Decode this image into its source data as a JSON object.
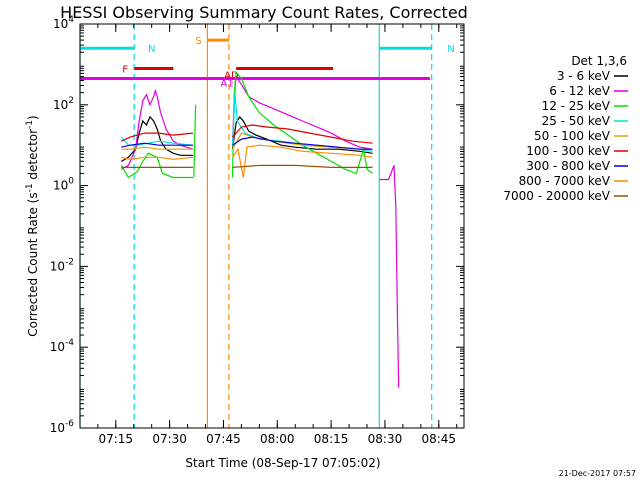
{
  "chart_data": {
    "type": "line",
    "title": "HESSI Observing Summary Count Rates, Corrected",
    "xlabel": "Start Time (08-Sep-17 07:05:02)",
    "ylabel": "Corrected Count Rate (s⁻¹ detector⁻¹)",
    "ylabel_parts": {
      "main": "Corrected Count Rate (s",
      "exp1": "-1",
      "mid": " detector",
      "exp2": "-1",
      "end": ")"
    },
    "x_unit": "minutes after 07:05:02",
    "xlim": [
      0,
      107
    ],
    "ylim_log10": [
      -6,
      4
    ],
    "x_ticks": [
      {
        "t": 9.97,
        "label": "07:15"
      },
      {
        "t": 24.97,
        "label": "07:30"
      },
      {
        "t": 39.97,
        "label": "07:45"
      },
      {
        "t": 54.97,
        "label": "08:00"
      },
      {
        "t": 69.97,
        "label": "08:15"
      },
      {
        "t": 84.97,
        "label": "08:30"
      },
      {
        "t": 99.97,
        "label": "08:45"
      }
    ],
    "y_ticks": [
      {
        "exp": 4,
        "mant": "10",
        "sup": "4"
      },
      {
        "exp": 2,
        "mant": "10",
        "sup": "2"
      },
      {
        "exp": 0,
        "mant": "10",
        "sup": "0"
      },
      {
        "exp": -2,
        "mant": "10",
        "sup": "-2"
      },
      {
        "exp": -4,
        "mant": "10",
        "sup": "-4"
      },
      {
        "exp": -6,
        "mant": "10",
        "sup": "-6"
      }
    ],
    "legend": {
      "title": "Det 1,3,6",
      "placement": "right",
      "entries": [
        {
          "label": "3 - 6 keV",
          "color": "#000000"
        },
        {
          "label": "6 - 12 keV",
          "color": "#e000e0"
        },
        {
          "label": "12 - 25 keV",
          "color": "#00e000"
        },
        {
          "label": "25 - 50 keV",
          "color": "#00e0e0"
        },
        {
          "label": "50 - 100 keV",
          "color": "#e0a000"
        },
        {
          "label": "100 - 300 keV",
          "color": "#e00000"
        },
        {
          "label": "300 - 800 keV",
          "color": "#0000e0"
        },
        {
          "label": "800 - 7000 keV",
          "color": "#ff8c00"
        },
        {
          "label": "7000 - 20000 keV",
          "color": "#a05000"
        }
      ]
    },
    "flag_bars": [
      {
        "label": "N",
        "color": "#00e0e0",
        "t_start": 0,
        "t_end": 15.1,
        "y_exp": 3.4
      },
      {
        "label": "N",
        "color": "#00e0e0",
        "t_start": 83.4,
        "t_end": 98.0,
        "y_exp": 3.4
      },
      {
        "label": "S",
        "color": "#ff8c00",
        "t_start": 35.5,
        "t_end": 41.5,
        "y_exp": 3.6
      },
      {
        "label": "F",
        "color": "#e00000",
        "t_start": 15.1,
        "t_end": 26.0,
        "y_exp": 2.9
      },
      {
        "label": "",
        "color": "#e00000",
        "t_start": 43.5,
        "t_end": 70.5,
        "y_exp": 2.9
      },
      {
        "label": "AD",
        "color": "#e00000",
        "t_start": 43.5,
        "t_end": 43.6,
        "y_exp": 2.75
      },
      {
        "label": "",
        "color": "#e000e0",
        "t_start": 0,
        "t_end": 97.5,
        "y_exp": 2.65
      },
      {
        "label": "A1",
        "color": "#e000e0",
        "t_start": 42.5,
        "t_end": 42.6,
        "y_exp": 2.55
      }
    ],
    "vlines": [
      {
        "t": 0.0,
        "color": "#00e0e0",
        "style": "solid"
      },
      {
        "t": 15.1,
        "color": "#00e0e0",
        "style": "dashed"
      },
      {
        "t": 83.4,
        "color": "#00e0e0",
        "style": "solid"
      },
      {
        "t": 98.0,
        "color": "#00e0e0",
        "style": "dashed"
      },
      {
        "t": 35.5,
        "color": "#ff8c00",
        "style": "solid"
      },
      {
        "t": 41.5,
        "color": "#ff8c00",
        "style": "dashed"
      }
    ],
    "series": [
      {
        "name": "3 - 6 keV",
        "color": "#000000",
        "segments": [
          [
            [
              11.5,
              0.6
            ],
            [
              13.5,
              0.7
            ],
            [
              15.5,
              0.9
            ],
            [
              16.5,
              1.3
            ],
            [
              17.5,
              1.6
            ],
            [
              18.5,
              1.5
            ],
            [
              19.5,
              1.7
            ],
            [
              20.5,
              1.6
            ],
            [
              21.5,
              1.4
            ],
            [
              22.5,
              1.1
            ],
            [
              24.0,
              0.9
            ],
            [
              26.0,
              0.8
            ],
            [
              28.0,
              0.75
            ],
            [
              31.5,
              0.75
            ]
          ],
          [
            [
              42.5,
              0.9
            ],
            [
              43.5,
              1.55
            ],
            [
              44.5,
              1.7
            ],
            [
              45.5,
              1.6
            ],
            [
              47.0,
              1.35
            ],
            [
              49.0,
              1.25
            ],
            [
              52.0,
              1.15
            ],
            [
              56.0,
              1.0
            ],
            [
              60.0,
              0.95
            ],
            [
              66.0,
              0.9
            ],
            [
              72.0,
              0.9
            ],
            [
              78.0,
              0.85
            ],
            [
              81.5,
              0.8
            ]
          ]
        ]
      },
      {
        "name": "6 - 12 keV",
        "color": "#e000e0",
        "segments": [
          [
            [
              11.5,
              0.4
            ],
            [
              13.5,
              0.5
            ],
            [
              15.5,
              0.9
            ],
            [
              16.5,
              1.6
            ],
            [
              17.5,
              2.1
            ],
            [
              18.5,
              2.25
            ],
            [
              19.5,
              2.0
            ],
            [
              20.5,
              2.2
            ],
            [
              21.0,
              2.35
            ],
            [
              21.5,
              2.2
            ],
            [
              22.5,
              1.8
            ],
            [
              24.0,
              1.4
            ],
            [
              26.0,
              1.1
            ],
            [
              28.0,
              1.0
            ],
            [
              31.5,
              0.9
            ]
          ],
          [
            [
              42.5,
              1.0
            ],
            [
              43.0,
              2.2
            ],
            [
              43.5,
              2.7
            ],
            [
              45.0,
              2.5
            ],
            [
              47.0,
              2.2
            ],
            [
              50.0,
              2.05
            ],
            [
              54.0,
              1.9
            ],
            [
              58.0,
              1.75
            ],
            [
              62.0,
              1.6
            ],
            [
              66.0,
              1.45
            ],
            [
              70.0,
              1.3
            ],
            [
              74.0,
              1.1
            ],
            [
              78.0,
              0.95
            ],
            [
              81.5,
              0.9
            ]
          ],
          [
            [
              83.5,
              0.15
            ],
            [
              86.0,
              0.15
            ],
            [
              87.5,
              0.5
            ],
            [
              88.0,
              -0.5
            ],
            [
              88.5,
              -3.5
            ],
            [
              88.8,
              -5.0
            ]
          ]
        ]
      },
      {
        "name": "12 - 25 keV",
        "color": "#00e000",
        "segments": [
          [
            [
              11.5,
              0.5
            ],
            [
              13.5,
              0.2
            ],
            [
              16.0,
              0.35
            ],
            [
              17.5,
              0.6
            ],
            [
              19.0,
              0.8
            ],
            [
              21.5,
              0.7
            ],
            [
              23.0,
              0.3
            ],
            [
              26.0,
              0.2
            ],
            [
              29.0,
              0.2
            ],
            [
              31.5,
              0.2
            ]
          ],
          [
            [
              31.7,
              0.2
            ],
            [
              32.2,
              2.0
            ]
          ],
          [
            [
              42.5,
              0.2
            ],
            [
              43.0,
              2.3
            ],
            [
              43.5,
              2.8
            ],
            [
              45.0,
              2.65
            ],
            [
              47.0,
              2.2
            ],
            [
              50.0,
              1.8
            ],
            [
              54.0,
              1.5
            ],
            [
              58.0,
              1.25
            ],
            [
              62.0,
              1.0
            ],
            [
              66.0,
              0.8
            ],
            [
              70.0,
              0.6
            ],
            [
              74.0,
              0.4
            ],
            [
              77.0,
              0.3
            ],
            [
              79.0,
              0.9
            ],
            [
              80.0,
              0.4
            ],
            [
              81.5,
              0.3
            ]
          ]
        ]
      },
      {
        "name": "25 - 50 keV",
        "color": "#00e0e0",
        "segments": [
          [
            [
              11.5,
              1.2
            ],
            [
              13.5,
              1.0
            ],
            [
              16.0,
              1.0
            ],
            [
              19.0,
              1.05
            ],
            [
              22.0,
              1.1
            ],
            [
              26.0,
              1.05
            ],
            [
              31.5,
              1.0
            ]
          ],
          [
            [
              42.5,
              1.0
            ],
            [
              43.2,
              2.3
            ],
            [
              43.8,
              1.6
            ],
            [
              46.0,
              1.3
            ],
            [
              50.0,
              1.15
            ],
            [
              56.0,
              1.1
            ],
            [
              62.0,
              1.0
            ],
            [
              70.0,
              0.95
            ],
            [
              78.0,
              0.9
            ],
            [
              81.5,
              0.85
            ]
          ]
        ]
      },
      {
        "name": "50 - 100 keV",
        "color": "#e0a000",
        "segments": [
          [
            [
              11.5,
              0.9
            ],
            [
              14.0,
              0.9
            ],
            [
              18.0,
              0.95
            ],
            [
              22.0,
              0.9
            ],
            [
              26.0,
              0.9
            ],
            [
              31.5,
              0.9
            ]
          ],
          [
            [
              42.5,
              0.9
            ],
            [
              45.0,
              1.3
            ],
            [
              48.0,
              1.2
            ],
            [
              54.0,
              1.1
            ],
            [
              62.0,
              1.0
            ],
            [
              70.0,
              0.95
            ],
            [
              78.0,
              0.9
            ],
            [
              81.5,
              0.9
            ]
          ]
        ]
      },
      {
        "name": "100 - 300 keV",
        "color": "#e00000",
        "segments": [
          [
            [
              11.5,
              1.1
            ],
            [
              14.0,
              1.2
            ],
            [
              18.0,
              1.3
            ],
            [
              22.0,
              1.3
            ],
            [
              26.0,
              1.25
            ],
            [
              31.5,
              1.3
            ]
          ],
          [
            [
              42.5,
              1.2
            ],
            [
              45.0,
              1.45
            ],
            [
              48.0,
              1.5
            ],
            [
              52.0,
              1.45
            ],
            [
              58.0,
              1.4
            ],
            [
              64.0,
              1.3
            ],
            [
              70.0,
              1.2
            ],
            [
              76.0,
              1.1
            ],
            [
              81.5,
              1.05
            ]
          ]
        ]
      },
      {
        "name": "300 - 800 keV",
        "color": "#0000e0",
        "segments": [
          [
            [
              11.5,
              0.95
            ],
            [
              14.0,
              1.0
            ],
            [
              18.0,
              1.05
            ],
            [
              22.0,
              1.0
            ],
            [
              26.0,
              1.0
            ],
            [
              31.5,
              1.0
            ]
          ],
          [
            [
              42.5,
              1.0
            ],
            [
              45.0,
              1.15
            ],
            [
              48.0,
              1.2
            ],
            [
              54.0,
              1.1
            ],
            [
              60.0,
              1.05
            ],
            [
              66.0,
              1.0
            ],
            [
              72.0,
              0.95
            ],
            [
              78.0,
              0.9
            ],
            [
              81.5,
              0.9
            ]
          ]
        ]
      },
      {
        "name": "800 - 7000 keV",
        "color": "#ff8c00",
        "segments": [
          [
            [
              11.5,
              0.7
            ],
            [
              14.0,
              0.65
            ],
            [
              18.0,
              0.7
            ],
            [
              22.0,
              0.7
            ],
            [
              26.0,
              0.65
            ],
            [
              31.5,
              0.7
            ]
          ],
          [
            [
              42.5,
              0.7
            ],
            [
              44.0,
              0.9
            ],
            [
              45.5,
              0.2
            ],
            [
              46.5,
              0.95
            ],
            [
              50.0,
              1.0
            ],
            [
              56.0,
              0.95
            ],
            [
              62.0,
              0.85
            ],
            [
              70.0,
              0.8
            ],
            [
              78.0,
              0.75
            ],
            [
              81.5,
              0.7
            ]
          ]
        ]
      },
      {
        "name": "7000 - 20000 keV",
        "color": "#a05000",
        "segments": [
          [
            [
              11.5,
              0.45
            ],
            [
              16.0,
              0.45
            ],
            [
              22.0,
              0.45
            ],
            [
              28.0,
              0.45
            ],
            [
              31.5,
              0.45
            ]
          ],
          [
            [
              42.5,
              0.45
            ],
            [
              50.0,
              0.5
            ],
            [
              60.0,
              0.5
            ],
            [
              70.0,
              0.45
            ],
            [
              81.5,
              0.45
            ]
          ]
        ]
      }
    ],
    "grid": false
  },
  "footer_date": "21-Dec-2017 07:57"
}
